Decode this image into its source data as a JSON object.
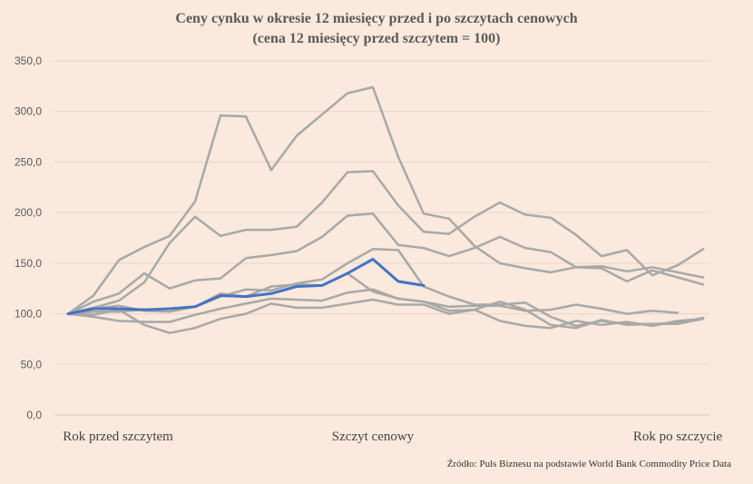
{
  "chart_data": {
    "type": "line",
    "title": "Ceny cynku w okresie 12 miesięcy przed i po szczytach cenowych",
    "subtitle": "(cena 12 miesięcy przed szczytem = 100)",
    "source": "Źródło: Puls Biznesu na podstawie World Bank Commodity Price Data",
    "xlabel": "",
    "ylabel": "",
    "ylim": [
      0,
      350
    ],
    "yticks": [
      "0,0",
      "50,0",
      "100,0",
      "150,0",
      "200,0",
      "250,0",
      "300,0",
      "350,0"
    ],
    "x_tick_labels": [
      {
        "x": 0,
        "label": "Rok przed szczytem"
      },
      {
        "x": 12,
        "label": "Szczyt cenowy"
      },
      {
        "x": 24,
        "label": "Rok po szczycie"
      }
    ],
    "x": [
      0,
      1,
      2,
      3,
      4,
      5,
      6,
      7,
      8,
      9,
      10,
      11,
      12,
      13,
      14,
      15,
      16,
      17,
      18,
      19,
      20,
      21,
      22,
      23,
      24,
      25
    ],
    "grid": true,
    "legend": "none",
    "series": [
      {
        "color": "#a8a8a8",
        "values": [
          100,
          118,
          153,
          166,
          177,
          211,
          296,
          295,
          242,
          276,
          297,
          318,
          324,
          255,
          199,
          194,
          167,
          150,
          145,
          141,
          146,
          147,
          142,
          146,
          141,
          136
        ]
      },
      {
        "color": "#a8a8a8",
        "values": [
          100,
          112,
          120,
          140,
          125,
          133,
          135,
          155,
          158,
          162,
          176,
          197,
          199,
          168,
          165,
          157,
          165,
          176,
          165,
          161,
          146,
          145,
          132,
          143,
          136,
          129
        ]
      },
      {
        "color": "#a8a8a8",
        "values": [
          100,
          106,
          113,
          131,
          170,
          196,
          177,
          183,
          183,
          186,
          210,
          240,
          241,
          207,
          181,
          179,
          196,
          210,
          198,
          195,
          178,
          157,
          163,
          138,
          148,
          164
        ]
      },
      {
        "color": "#a8a8a8",
        "values": [
          100,
          105,
          108,
          103,
          102,
          107,
          117,
          124,
          123,
          130,
          134,
          150,
          164,
          163,
          127,
          117,
          109,
          109,
          111,
          97,
          88,
          93,
          90,
          90,
          91,
          96
        ]
      },
      {
        "color": "#a8a8a8",
        "values": [
          100,
          102,
          102,
          104,
          105,
          107,
          120,
          117,
          127,
          129,
          128,
          140,
          122,
          115,
          112,
          107,
          108,
          108,
          103,
          104,
          109,
          105,
          100,
          103,
          101,
          null
        ]
      },
      {
        "color": "#a8a8a8",
        "values": [
          100,
          97,
          93,
          92,
          92,
          99,
          105,
          110,
          115,
          114,
          113,
          121,
          124,
          115,
          112,
          103,
          104,
          112,
          104,
          89,
          86,
          94,
          89,
          90,
          90,
          95
        ]
      },
      {
        "color": "#a8a8a8",
        "values": [
          100,
          99,
          104,
          89,
          81,
          86,
          95,
          100,
          110,
          106,
          106,
          110,
          114,
          109,
          109,
          100,
          104,
          93,
          88,
          86,
          93,
          89,
          92,
          88,
          93,
          95
        ]
      },
      {
        "color": "#4472c4",
        "values": [
          100,
          105,
          105,
          104,
          105,
          107,
          118,
          117,
          120,
          127,
          128,
          140,
          154,
          132,
          128,
          null,
          null,
          null,
          null,
          null,
          null,
          null,
          null,
          null,
          null,
          null
        ]
      }
    ]
  }
}
